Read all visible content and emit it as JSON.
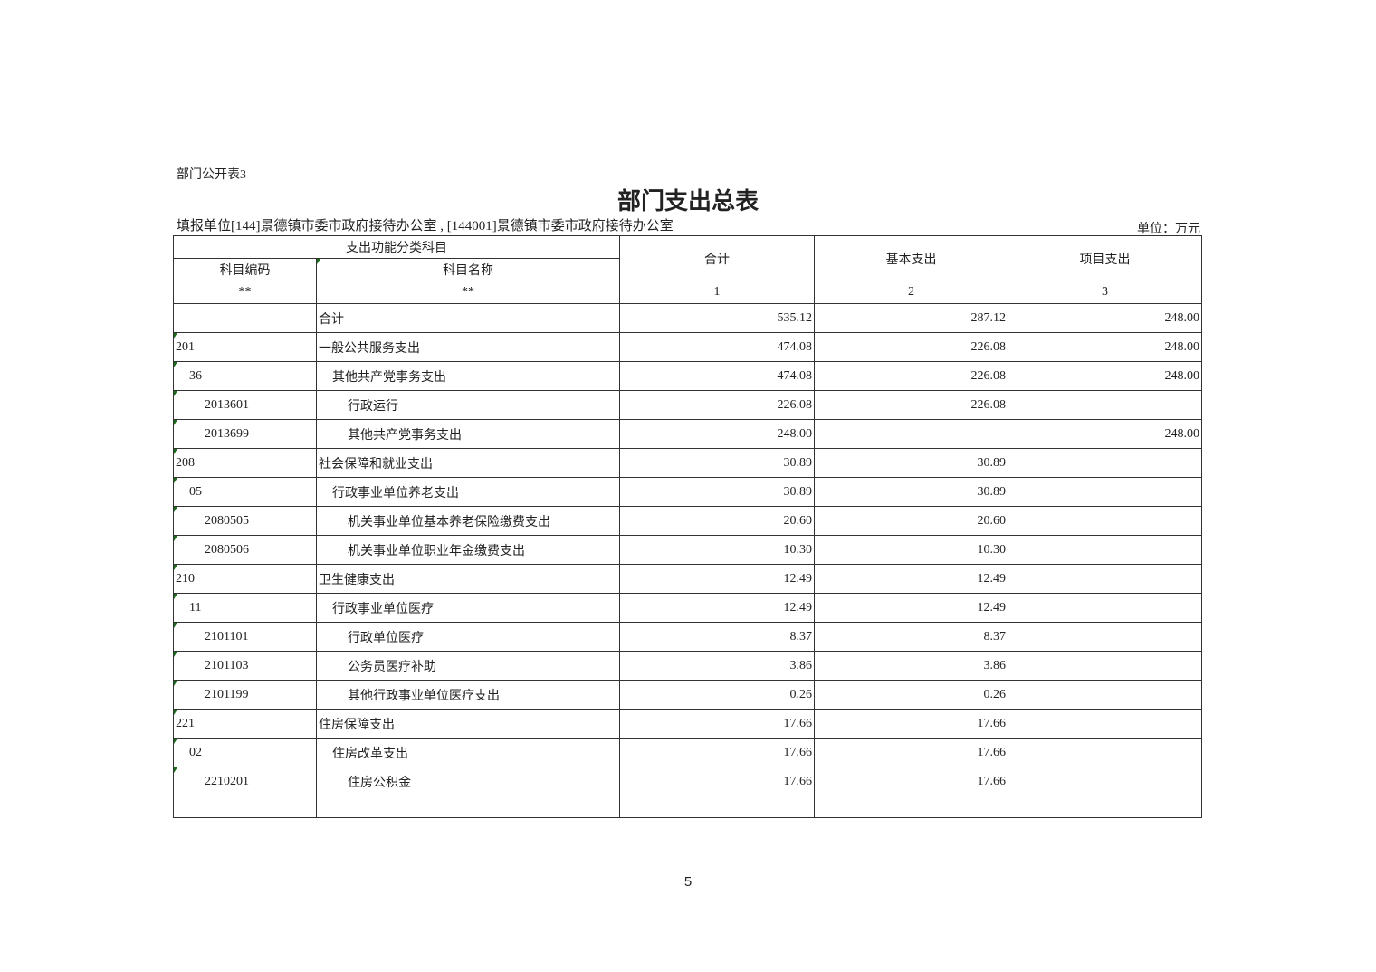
{
  "doc": {
    "tag": "部门公开表3",
    "title": "部门支出总表",
    "unit_name": "填报单位[144]景德镇市委市政府接待办公室 , [144001]景德镇市委市政府接待办公室",
    "unit_label": "单位：万元",
    "page_number": "5"
  },
  "header": {
    "group": "支出功能分类科目",
    "code": "科目编码",
    "name": "科目名称",
    "total": "合计",
    "basic": "基本支出",
    "project": "项目支出",
    "code_idx": "**",
    "name_idx": "**",
    "total_idx": "1",
    "basic_idx": "2",
    "project_idx": "3"
  },
  "rows": [
    {
      "code": "",
      "name": "合计",
      "total": "535.12",
      "basic": "287.12",
      "project": "248.00",
      "level": 0
    },
    {
      "code": "201",
      "name": "一般公共服务支出",
      "total": "474.08",
      "basic": "226.08",
      "project": "248.00",
      "level": 0
    },
    {
      "code": "36",
      "name": "其他共产党事务支出",
      "total": "474.08",
      "basic": "226.08",
      "project": "248.00",
      "level": 1
    },
    {
      "code": "2013601",
      "name": "行政运行",
      "total": "226.08",
      "basic": "226.08",
      "project": "",
      "level": 2
    },
    {
      "code": "2013699",
      "name": "其他共产党事务支出",
      "total": "248.00",
      "basic": "",
      "project": "248.00",
      "level": 2
    },
    {
      "code": "208",
      "name": "社会保障和就业支出",
      "total": "30.89",
      "basic": "30.89",
      "project": "",
      "level": 0
    },
    {
      "code": "05",
      "name": "行政事业单位养老支出",
      "total": "30.89",
      "basic": "30.89",
      "project": "",
      "level": 1
    },
    {
      "code": "2080505",
      "name": "机关事业单位基本养老保险缴费支出",
      "total": "20.60",
      "basic": "20.60",
      "project": "",
      "level": 2
    },
    {
      "code": "2080506",
      "name": "机关事业单位职业年金缴费支出",
      "total": "10.30",
      "basic": "10.30",
      "project": "",
      "level": 2
    },
    {
      "code": "210",
      "name": "卫生健康支出",
      "total": "12.49",
      "basic": "12.49",
      "project": "",
      "level": 0
    },
    {
      "code": "11",
      "name": "行政事业单位医疗",
      "total": "12.49",
      "basic": "12.49",
      "project": "",
      "level": 1
    },
    {
      "code": "2101101",
      "name": "行政单位医疗",
      "total": "8.37",
      "basic": "8.37",
      "project": "",
      "level": 2
    },
    {
      "code": "2101103",
      "name": "公务员医疗补助",
      "total": "3.86",
      "basic": "3.86",
      "project": "",
      "level": 2
    },
    {
      "code": "2101199",
      "name": "其他行政事业单位医疗支出",
      "total": "0.26",
      "basic": "0.26",
      "project": "",
      "level": 2
    },
    {
      "code": "221",
      "name": "住房保障支出",
      "total": "17.66",
      "basic": "17.66",
      "project": "",
      "level": 0
    },
    {
      "code": "02",
      "name": "住房改革支出",
      "total": "17.66",
      "basic": "17.66",
      "project": "",
      "level": 1
    },
    {
      "code": "2210201",
      "name": "住房公积金",
      "total": "17.66",
      "basic": "17.66",
      "project": "",
      "level": 2
    }
  ]
}
